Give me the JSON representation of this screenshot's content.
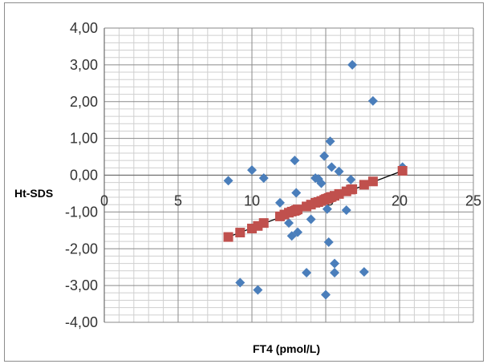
{
  "chart_data": {
    "type": "scatter",
    "xlabel": "FT4 (pmol/L)",
    "ylabel": "Ht-SDS",
    "xlim": [
      0,
      25
    ],
    "ylim": [
      -4,
      4
    ],
    "x_ticks": [
      "0",
      "5",
      "10",
      "15",
      "20",
      "25"
    ],
    "y_ticks": [
      "4,00",
      "3,00",
      "2,00",
      "1,00",
      "0,00",
      "-1,00",
      "-2,00",
      "-3,00",
      "-4,00"
    ],
    "grid": true,
    "legend": "none",
    "series": [
      {
        "marker": "diamond",
        "color": "#4a7ebb",
        "points": [
          [
            8.4,
            -0.15
          ],
          [
            9.2,
            -2.92
          ],
          [
            10.0,
            0.14
          ],
          [
            10.4,
            -3.12
          ],
          [
            10.8,
            -0.08
          ],
          [
            11.9,
            -0.75
          ],
          [
            12.2,
            -1.1
          ],
          [
            12.5,
            -1.3
          ],
          [
            12.7,
            -1.65
          ],
          [
            12.9,
            0.4
          ],
          [
            13.0,
            -0.48
          ],
          [
            13.1,
            -1.55
          ],
          [
            13.7,
            -2.65
          ],
          [
            14.0,
            -1.2
          ],
          [
            14.3,
            -0.08
          ],
          [
            14.5,
            -0.1
          ],
          [
            14.7,
            -0.22
          ],
          [
            14.9,
            0.52
          ],
          [
            15.0,
            -3.25
          ],
          [
            15.1,
            -0.92
          ],
          [
            15.2,
            -1.82
          ],
          [
            15.3,
            0.92
          ],
          [
            15.4,
            0.22
          ],
          [
            15.6,
            -2.4
          ],
          [
            15.6,
            -2.65
          ],
          [
            15.9,
            0.1
          ],
          [
            16.4,
            -0.95
          ],
          [
            16.7,
            -0.12
          ],
          [
            16.8,
            3.0
          ],
          [
            17.6,
            -2.63
          ],
          [
            18.2,
            2.02
          ],
          [
            20.2,
            0.22
          ]
        ]
      },
      {
        "marker": "square",
        "color": "#c0504d",
        "points": [
          [
            8.4,
            -1.68
          ],
          [
            9.2,
            -1.56
          ],
          [
            10.0,
            -1.45
          ],
          [
            10.4,
            -1.38
          ],
          [
            10.8,
            -1.3
          ],
          [
            11.9,
            -1.12
          ],
          [
            12.2,
            -1.07
          ],
          [
            12.5,
            -1.02
          ],
          [
            12.7,
            -0.99
          ],
          [
            12.9,
            -0.97
          ],
          [
            13.0,
            -0.95
          ],
          [
            13.1,
            -0.93
          ],
          [
            13.7,
            -0.85
          ],
          [
            14.0,
            -0.8
          ],
          [
            14.3,
            -0.75
          ],
          [
            14.5,
            -0.73
          ],
          [
            14.7,
            -0.7
          ],
          [
            14.9,
            -0.67
          ],
          [
            15.0,
            -0.65
          ],
          [
            15.1,
            -0.64
          ],
          [
            15.2,
            -0.62
          ],
          [
            15.3,
            -0.6
          ],
          [
            15.4,
            -0.59
          ],
          [
            15.6,
            -0.56
          ],
          [
            15.9,
            -0.51
          ],
          [
            16.4,
            -0.44
          ],
          [
            16.7,
            -0.39
          ],
          [
            16.8,
            -0.38
          ],
          [
            17.6,
            -0.26
          ],
          [
            18.2,
            -0.17
          ],
          [
            20.2,
            0.12
          ]
        ]
      }
    ],
    "trendline": {
      "x": [
        8.4,
        20.2
      ],
      "y": [
        -1.68,
        0.12
      ],
      "color": "#000000"
    }
  }
}
